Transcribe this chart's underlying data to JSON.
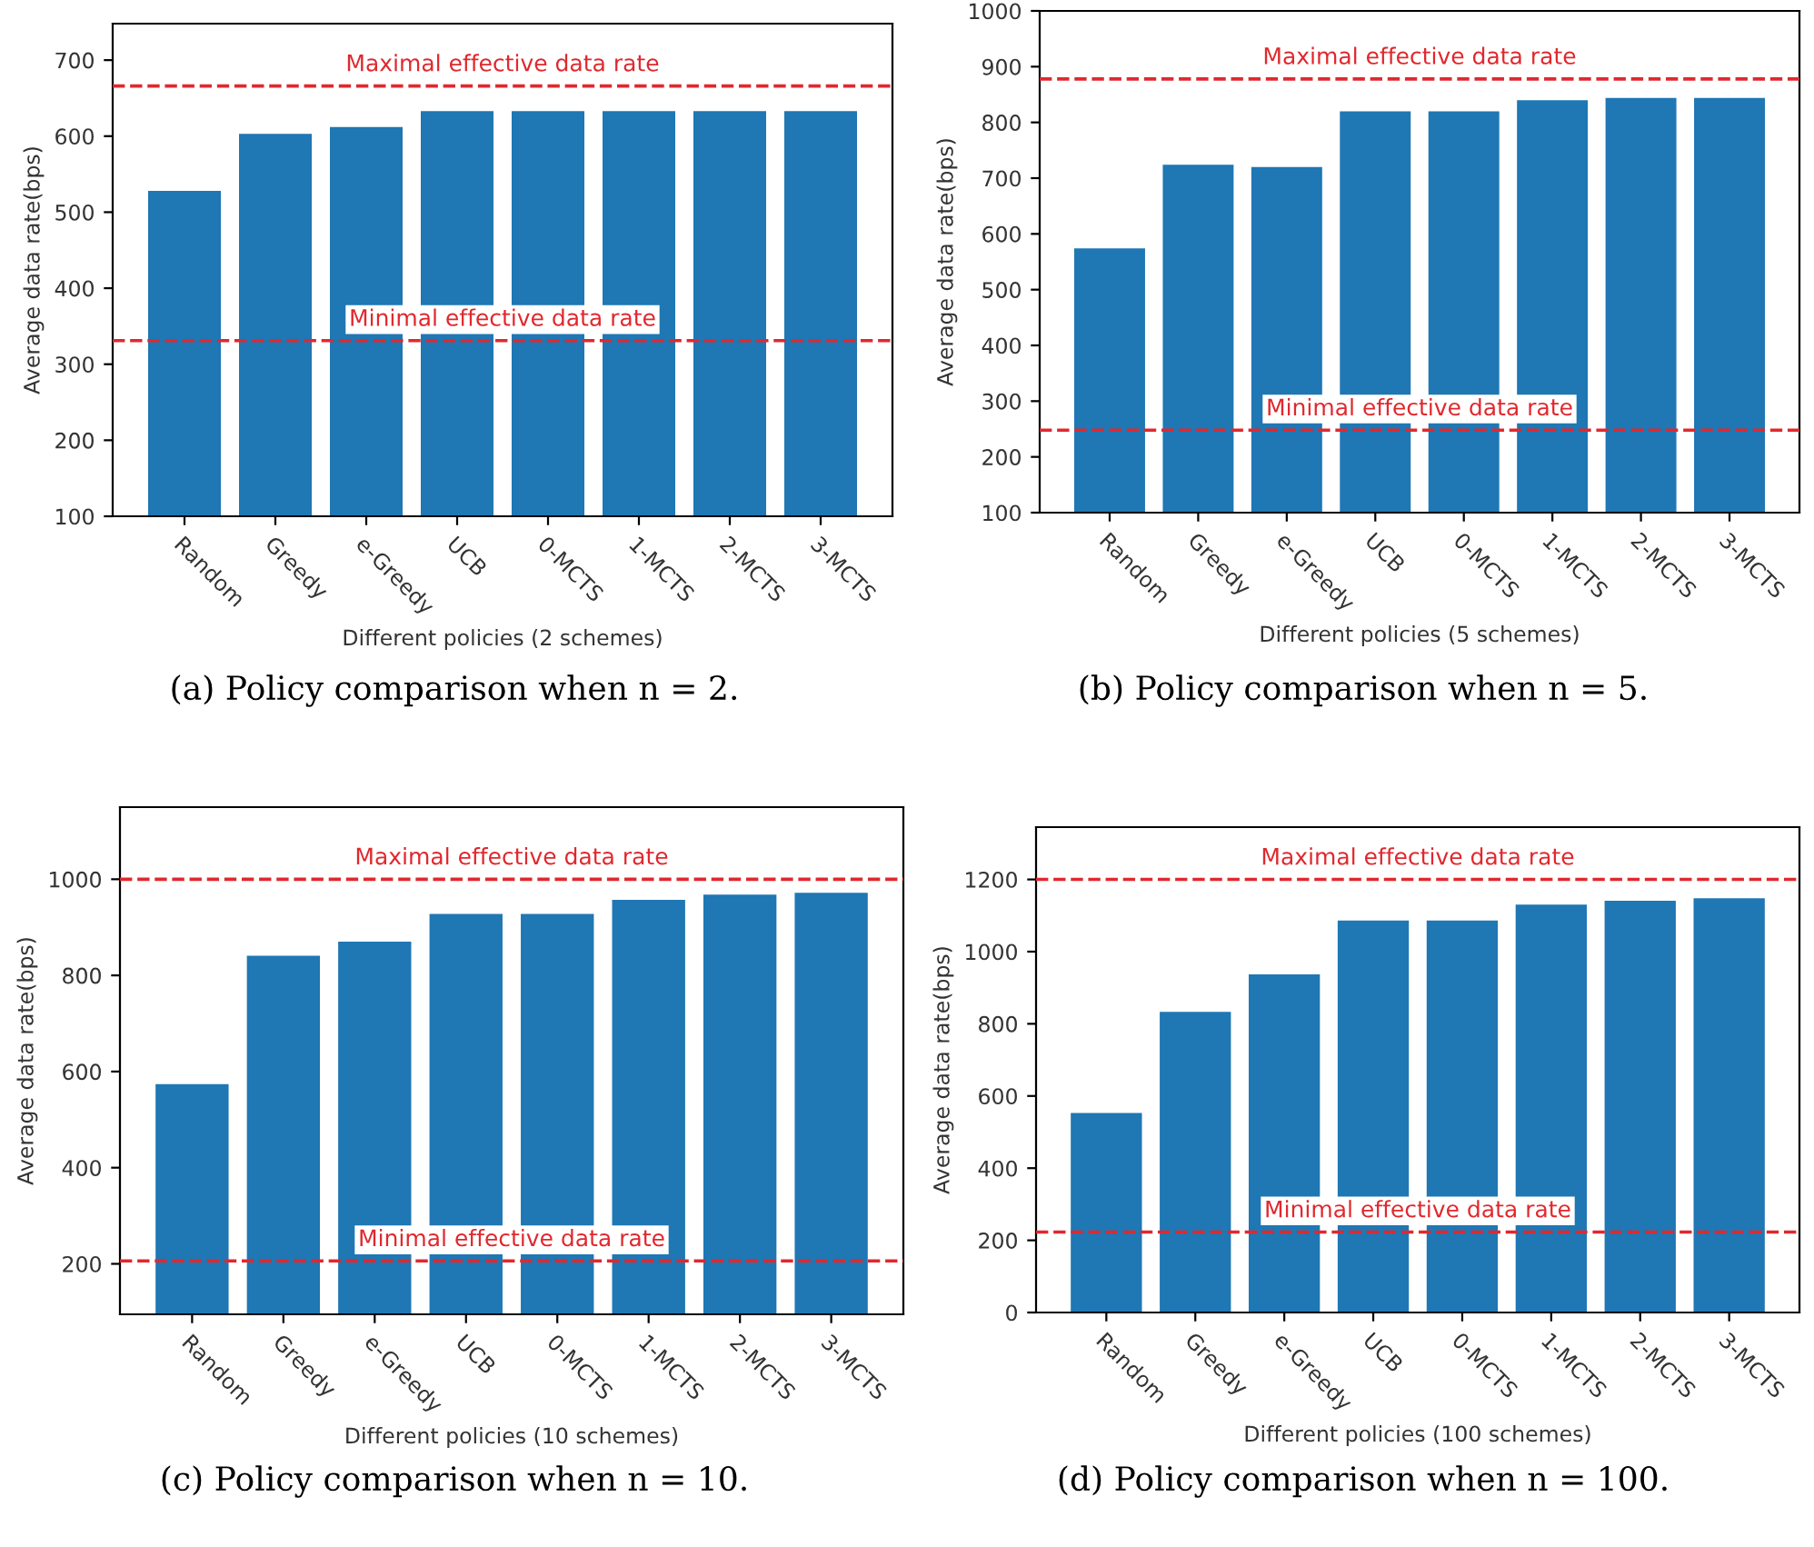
{
  "chart_data": [
    {
      "type": "bar",
      "xlabel": "Different policies (2 schemes)",
      "ylabel": "Average data rate(bps)",
      "categories": [
        "Random",
        "Greedy",
        "e-Greedy",
        "UCB",
        "0-MCTS",
        "1-MCTS",
        "2-MCTS",
        "3-MCTS"
      ],
      "values": [
        528,
        603,
        612,
        633,
        633,
        633,
        633,
        633
      ],
      "color": "#1f77b4",
      "ylim": [
        100,
        748
      ],
      "yticks": [
        100,
        200,
        300,
        400,
        500,
        600,
        700
      ],
      "grid": false,
      "ref_lines": [
        {
          "axis": "y",
          "value": 666,
          "label": "Maximal effective data rate",
          "color": "#e0282e",
          "line_style": "dashed"
        },
        {
          "axis": "y",
          "value": 331,
          "label": "Minimal effective data rate",
          "color": "#e0282e",
          "line_style": "dashed"
        }
      ],
      "annotations": [
        "(a) Policy comparison when n = 2."
      ]
    },
    {
      "type": "bar",
      "xlabel": "Different policies (5 schemes)",
      "ylabel": "Average data rate(bps)",
      "categories": [
        "Random",
        "Greedy",
        "e-Greedy",
        "UCB",
        "0-MCTS",
        "1-MCTS",
        "2-MCTS",
        "3-MCTS"
      ],
      "values": [
        574,
        724,
        720,
        820,
        820,
        840,
        844,
        844
      ],
      "color": "#1f77b4",
      "ylim": [
        100,
        1000
      ],
      "yticks": [
        100,
        200,
        300,
        400,
        500,
        600,
        700,
        800,
        900,
        1000
      ],
      "grid": false,
      "ref_lines": [
        {
          "axis": "y",
          "value": 878,
          "label": "Maximal effective data rate",
          "color": "#e0282e",
          "line_style": "dashed"
        },
        {
          "axis": "y",
          "value": 248,
          "label": "Minimal effective data rate",
          "color": "#e0282e",
          "line_style": "dashed"
        }
      ],
      "annotations": [
        "(b) Policy comparison when n = 5."
      ]
    },
    {
      "type": "bar",
      "xlabel": "Different policies (10 schemes)",
      "ylabel": "Average data rate(bps)",
      "categories": [
        "Random",
        "Greedy",
        "e-Greedy",
        "UCB",
        "0-MCTS",
        "1-MCTS",
        "2-MCTS",
        "3-MCTS"
      ],
      "values": [
        574,
        841,
        870,
        928,
        928,
        957,
        968,
        972
      ],
      "color": "#1f77b4",
      "ylim": [
        95,
        1150
      ],
      "yticks": [
        200,
        400,
        600,
        800,
        1000
      ],
      "grid": false,
      "ref_lines": [
        {
          "axis": "y",
          "value": 1000,
          "label": "Maximal effective data rate",
          "color": "#e0282e",
          "line_style": "dashed"
        },
        {
          "axis": "y",
          "value": 206,
          "label": "Minimal effective data rate",
          "color": "#e0282e",
          "line_style": "dashed"
        }
      ],
      "annotations": [
        "(c) Policy comparison when n = 10."
      ]
    },
    {
      "type": "bar",
      "xlabel": "Different policies (100 schemes)",
      "ylabel": "Average data rate(bps)",
      "categories": [
        "Random",
        "Greedy",
        "e-Greedy",
        "UCB",
        "0-MCTS",
        "1-MCTS",
        "2-MCTS",
        "3-MCTS"
      ],
      "values": [
        553,
        833,
        937,
        1086,
        1086,
        1130,
        1141,
        1148
      ],
      "color": "#1f77b4",
      "ylim": [
        0,
        1345
      ],
      "yticks": [
        0,
        200,
        400,
        600,
        800,
        1000,
        1200
      ],
      "grid": false,
      "ref_lines": [
        {
          "axis": "y",
          "value": 1200,
          "label": "Maximal effective data rate",
          "color": "#e0282e",
          "line_style": "dashed"
        },
        {
          "axis": "y",
          "value": 223,
          "label": "Minimal effective data rate",
          "color": "#e0282e",
          "line_style": "dashed"
        }
      ],
      "annotations": [
        "(d) Policy comparison when n = 100."
      ]
    }
  ]
}
